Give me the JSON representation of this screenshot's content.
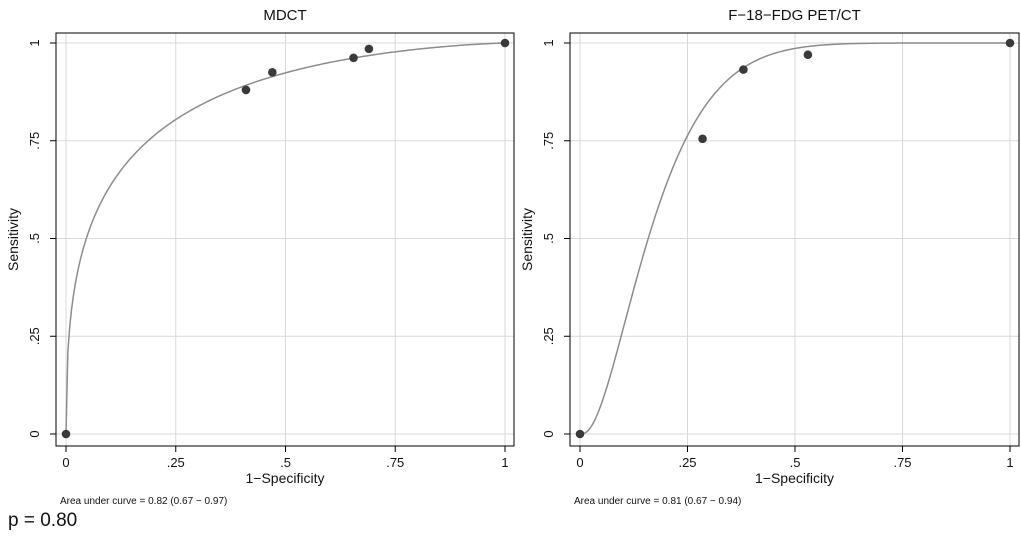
{
  "chart_data": [
    {
      "type": "scatter",
      "title": "MDCT",
      "xlabel": "1−Specificity",
      "ylabel": "Sensitivity",
      "xlim": [
        0,
        1
      ],
      "ylim": [
        0,
        1
      ],
      "xticks": [
        "0",
        ".25",
        ".5",
        ".75",
        "1"
      ],
      "yticks": [
        "0",
        ".25",
        ".5",
        ".75",
        "1"
      ],
      "grid": true,
      "points": [
        {
          "x": 0,
          "y": 0
        },
        {
          "x": 0.41,
          "y": 0.88
        },
        {
          "x": 0.47,
          "y": 0.925
        },
        {
          "x": 0.655,
          "y": 0.962
        },
        {
          "x": 0.69,
          "y": 0.985
        },
        {
          "x": 1,
          "y": 1
        }
      ],
      "fitted_curve": {
        "model": "binormal",
        "a": 1.43,
        "b": 0.85
      },
      "annotation": "Area under curve = 0.82  (0.67 − 0.97)"
    },
    {
      "type": "scatter",
      "title": "F−18−FDG PET/CT",
      "xlabel": "1−Specificity",
      "ylabel": "Sensitivity",
      "xlim": [
        0,
        1
      ],
      "ylim": [
        0,
        1
      ],
      "xticks": [
        "0",
        ".25",
        ".5",
        ".75",
        "1"
      ],
      "yticks": [
        "0",
        ".25",
        ".5",
        ".75",
        "1"
      ],
      "grid": true,
      "points": [
        {
          "x": 0,
          "y": 0
        },
        {
          "x": 0.285,
          "y": 0.755
        },
        {
          "x": 0.38,
          "y": 0.932
        },
        {
          "x": 0.53,
          "y": 0.97
        },
        {
          "x": 1,
          "y": 1
        }
      ],
      "fitted_curve": {
        "model": "binormal",
        "a": 2.2,
        "b": 2.2
      },
      "annotation": "Area under curve = 0.81  (0.67 − 0.94)"
    }
  ],
  "footer": {
    "p_value": "p = 0.80"
  },
  "colors": {
    "curve": "#8c8c8c",
    "point": "#3a3a3a",
    "grid": "#d9d9d9",
    "frame": "#000000"
  }
}
